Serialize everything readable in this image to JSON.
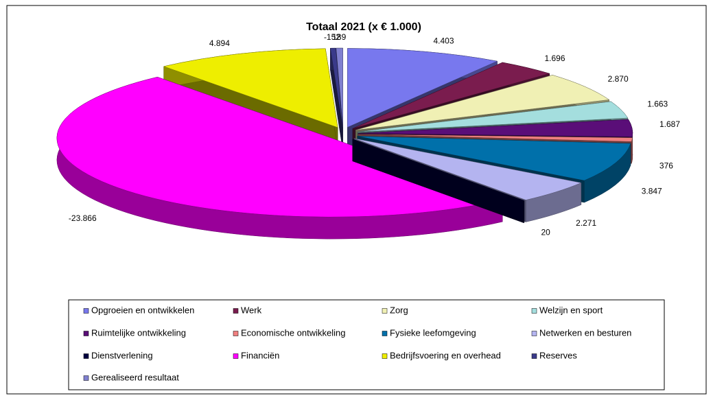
{
  "chart_data": {
    "type": "pie3d",
    "title": "Totaal 2021 (x € 1.000)",
    "categories": [
      "Opgroeien en ontwikkelen",
      "Werk",
      "Zorg",
      "Welzijn en sport",
      "Ruimtelijke ontwikkeling",
      "Economische ontwikkeling",
      "Fysieke leefomgeving",
      "Netwerken en besturen",
      "Dienstverlening",
      "Financiën",
      "Bedrijfsvoering en overhead",
      "Reserves",
      "Gerealiseerd resultaat"
    ],
    "values": [
      4403,
      1696,
      2870,
      1663,
      1687,
      376,
      3847,
      2271,
      20,
      -23866,
      4894,
      -152,
      189
    ],
    "value_labels": [
      "4.403",
      "1.696",
      "2.870",
      "1.663",
      "1.687",
      "376",
      "3.847",
      "2.271",
      "20",
      "-23.866",
      "4.894",
      "-152",
      "189"
    ],
    "colors": [
      "#7878ee",
      "#7a1c4e",
      "#f0f0b4",
      "#a4dede",
      "#5a0e78",
      "#f08080",
      "#0070aa",
      "#b4b4f0",
      "#000040",
      "#ff00ff",
      "#eeee00",
      "#3a3a8a",
      "#8080d0"
    ],
    "legend": "bottom"
  }
}
